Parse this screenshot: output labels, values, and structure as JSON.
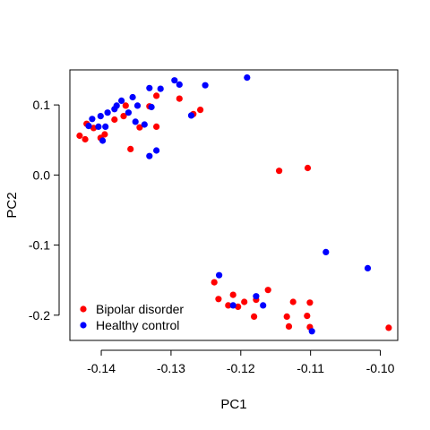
{
  "chart_data": {
    "type": "scatter",
    "title": "",
    "xlabel": "PC1",
    "ylabel": "PC2",
    "xlim": [
      -0.1445,
      -0.0975
    ],
    "ylim": [
      -0.236,
      0.15
    ],
    "xticks": [
      -0.14,
      -0.13,
      -0.12,
      -0.11,
      -0.1
    ],
    "xtick_labels": [
      "-0.14",
      "-0.13",
      "-0.12",
      "-0.11",
      "-0.10"
    ],
    "yticks": [
      -0.2,
      -0.1,
      0.0,
      0.1
    ],
    "ytick_labels": [
      "-0.2",
      "-0.1",
      "0.0",
      "0.1"
    ],
    "grid": false,
    "legend_position": "bottom-left",
    "series": [
      {
        "name": "Bipolar disorder",
        "color": "#ff0000",
        "points": [
          [
            -0.1431,
            0.056
          ],
          [
            -0.1423,
            0.051
          ],
          [
            -0.1421,
            0.073
          ],
          [
            -0.1411,
            0.067
          ],
          [
            -0.1401,
            0.053
          ],
          [
            -0.1395,
            0.058
          ],
          [
            -0.1381,
            0.079
          ],
          [
            -0.1368,
            0.084
          ],
          [
            -0.1365,
            0.099
          ],
          [
            -0.1358,
            0.037
          ],
          [
            -0.1345,
            0.068
          ],
          [
            -0.1331,
            0.098
          ],
          [
            -0.1321,
            0.113
          ],
          [
            -0.1321,
            0.069
          ],
          [
            -0.1288,
            0.109
          ],
          [
            -0.1268,
            0.087
          ],
          [
            -0.1258,
            0.093
          ],
          [
            -0.1145,
            0.006
          ],
          [
            -0.1104,
            0.01
          ],
          [
            -0.1238,
            -0.153
          ],
          [
            -0.1232,
            -0.177
          ],
          [
            -0.1218,
            -0.186
          ],
          [
            -0.1211,
            -0.171
          ],
          [
            -0.1204,
            -0.188
          ],
          [
            -0.1195,
            -0.181
          ],
          [
            -0.1181,
            -0.202
          ],
          [
            -0.1178,
            -0.178
          ],
          [
            -0.1161,
            -0.164
          ],
          [
            -0.1134,
            -0.202
          ],
          [
            -0.1131,
            -0.216
          ],
          [
            -0.1125,
            -0.181
          ],
          [
            -0.1105,
            -0.201
          ],
          [
            -0.1101,
            -0.182
          ],
          [
            -0.1101,
            -0.217
          ],
          [
            -0.0988,
            -0.218
          ]
        ]
      },
      {
        "name": "Healthy control",
        "color": "#0000ff",
        "points": [
          [
            -0.1418,
            0.07
          ],
          [
            -0.1413,
            0.08
          ],
          [
            -0.1404,
            0.069
          ],
          [
            -0.1401,
            0.084
          ],
          [
            -0.1398,
            0.049
          ],
          [
            -0.1394,
            0.069
          ],
          [
            -0.1391,
            0.089
          ],
          [
            -0.1381,
            0.094
          ],
          [
            -0.1378,
            0.099
          ],
          [
            -0.1371,
            0.106
          ],
          [
            -0.1361,
            0.089
          ],
          [
            -0.1355,
            0.111
          ],
          [
            -0.1351,
            0.076
          ],
          [
            -0.1348,
            0.099
          ],
          [
            -0.1338,
            0.072
          ],
          [
            -0.1331,
            0.124
          ],
          [
            -0.1331,
            0.027
          ],
          [
            -0.1328,
            0.097
          ],
          [
            -0.1321,
            0.035
          ],
          [
            -0.1315,
            0.123
          ],
          [
            -0.1295,
            0.135
          ],
          [
            -0.1288,
            0.129
          ],
          [
            -0.1271,
            0.085
          ],
          [
            -0.1251,
            0.128
          ],
          [
            -0.1191,
            0.139
          ],
          [
            -0.1231,
            -0.143
          ],
          [
            -0.1211,
            -0.186
          ],
          [
            -0.1178,
            -0.173
          ],
          [
            -0.1168,
            -0.186
          ],
          [
            -0.1098,
            -0.223
          ],
          [
            -0.1078,
            -0.11
          ],
          [
            -0.1018,
            -0.133
          ]
        ]
      }
    ]
  }
}
